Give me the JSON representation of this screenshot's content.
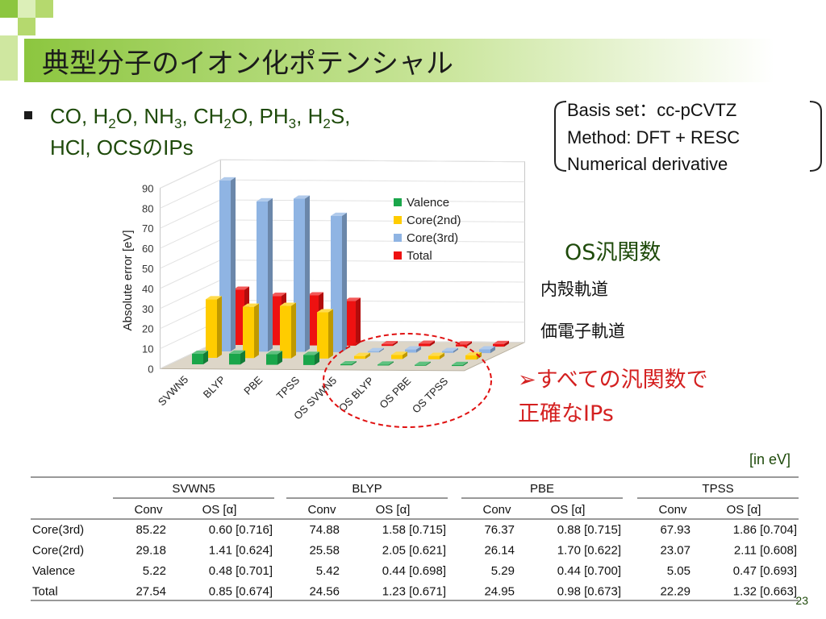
{
  "title": "典型分子のイオン化ポテンシャル",
  "bullet": {
    "line1": [
      "CO, H",
      "2",
      "O, NH",
      "3",
      ", CH",
      "2",
      "O, PH",
      "3",
      ", H",
      "2",
      "S,"
    ],
    "line2": "HCl, OCSのIPs"
  },
  "info_box": [
    "Basis set：cc-pCVTZ",
    "Method: DFT + RESC",
    "Numerical derivative"
  ],
  "chart_data": {
    "type": "bar3d",
    "ylabel": "Absolute error [eV]",
    "categories": [
      "SVWN5",
      "BLYP",
      "PBE",
      "TPSS",
      "OS SVWN5",
      "OS BLYP",
      "OS PBE",
      "OS TPSS"
    ],
    "series": [
      {
        "name": "Valence",
        "color": "#1aa64a",
        "values": [
          5.22,
          5.42,
          5.29,
          5.05,
          0.48,
          0.44,
          0.44,
          0.47
        ]
      },
      {
        "name": "Core(2nd)",
        "color": "#ffcc00",
        "values": [
          29.18,
          25.58,
          26.14,
          23.07,
          1.41,
          2.05,
          1.7,
          2.11
        ]
      },
      {
        "name": "Core(3rd)",
        "color": "#8fb4e3",
        "values": [
          85.22,
          74.88,
          76.37,
          67.93,
          0.6,
          1.58,
          0.88,
          1.86
        ]
      },
      {
        "name": "Total",
        "color": "#ee1111",
        "values": [
          27.54,
          24.56,
          24.95,
          22.29,
          0.85,
          1.23,
          0.98,
          1.32
        ]
      }
    ],
    "ylim": [
      0,
      90
    ],
    "yticks": [
      0,
      10,
      20,
      30,
      40,
      50,
      60,
      70,
      80,
      90
    ]
  },
  "notes": {
    "os": "OS汎関数",
    "core": "内殻軌道",
    "valence": "価電子軌道",
    "conclusion1": "➢すべての汎関数で",
    "conclusion2": "正確なIPs"
  },
  "unit": "[in eV]",
  "table": {
    "groups": [
      "SVWN5",
      "BLYP",
      "PBE",
      "TPSS"
    ],
    "subheaders": [
      "Conv",
      "OS [α]",
      "Conv",
      "OS [α]",
      "Conv",
      "OS [α]",
      "Conv",
      "OS [α]"
    ],
    "rows": [
      [
        "Core(3rd)",
        "85.22",
        "0.60 [0.716]",
        "74.88",
        "1.58 [0.715]",
        "76.37",
        "0.88 [0.715]",
        "67.93",
        "1.86 [0.704]"
      ],
      [
        "Core(2rd)",
        "29.18",
        "1.41 [0.624]",
        "25.58",
        "2.05 [0.621]",
        "26.14",
        "1.70 [0.622]",
        "23.07",
        "2.11 [0.608]"
      ],
      [
        "Valence",
        "5.22",
        "0.48 [0.701]",
        "5.42",
        "0.44 [0.698]",
        "5.29",
        "0.44 [0.700]",
        "5.05",
        "0.47 [0.693]"
      ],
      [
        "Total",
        "27.54",
        "0.85 [0.674]",
        "24.56",
        "1.23 [0.671]",
        "24.95",
        "0.98 [0.673]",
        "22.29",
        "1.32 [0.663]"
      ]
    ]
  },
  "page_number": "23"
}
